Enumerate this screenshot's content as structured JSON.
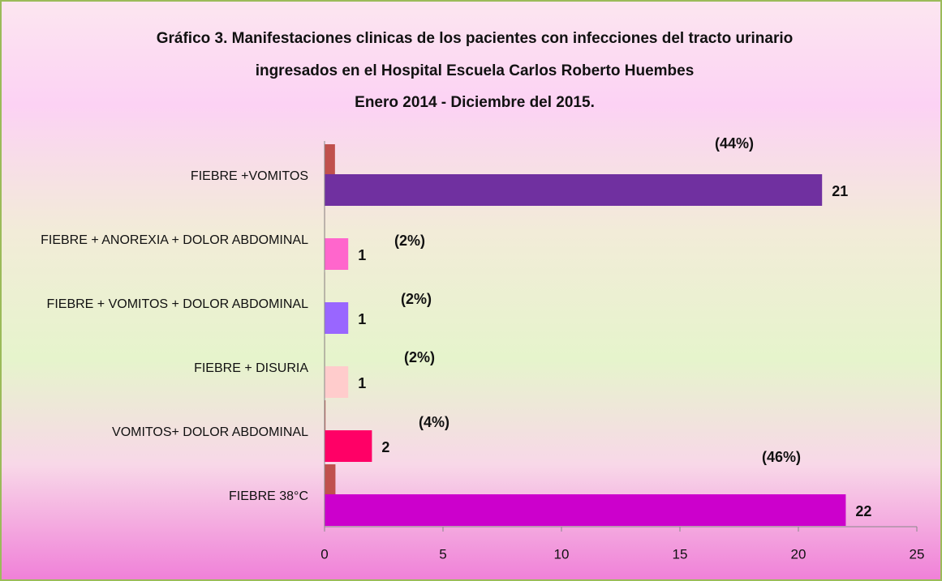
{
  "chart_data": {
    "type": "barh",
    "title": [
      "Gráfico 3. Manifestaciones clinicas de los pacientes con infecciones del tracto urinario",
      "ingresados en el Hospital Escuela Carlos Roberto Huembes",
      "Enero 2014 - Diciembre del 2015."
    ],
    "categories": [
      "FIEBRE +VOMITOS",
      "FIEBRE + ANOREXIA + DOLOR ABDOMINAL",
      "FIEBRE + VOMITOS + DOLOR ABDOMINAL",
      "FIEBRE + DISURIA",
      "VOMITOS+ DOLOR ABDOMINAL",
      "FIEBRE 38°C"
    ],
    "series": [
      {
        "values": [
          21,
          1,
          1,
          1,
          2,
          22
        ],
        "colors": [
          "#7030a0",
          "#ff66cc",
          "#9966ff",
          "#ffcccc",
          "#ff0066",
          "#cc00cc"
        ]
      },
      {
        "color": "#c0504d",
        "values": [
          0.44,
          0.02,
          0.02,
          0.02,
          0.04,
          0.46
        ],
        "value_labels": [
          "(44%)",
          "(2%)",
          "(2%)",
          "(2%)",
          "(4%)",
          "(46%)"
        ]
      }
    ],
    "xlim": [
      0,
      25
    ],
    "xticks": [
      0,
      5,
      10,
      15,
      20,
      25
    ]
  }
}
